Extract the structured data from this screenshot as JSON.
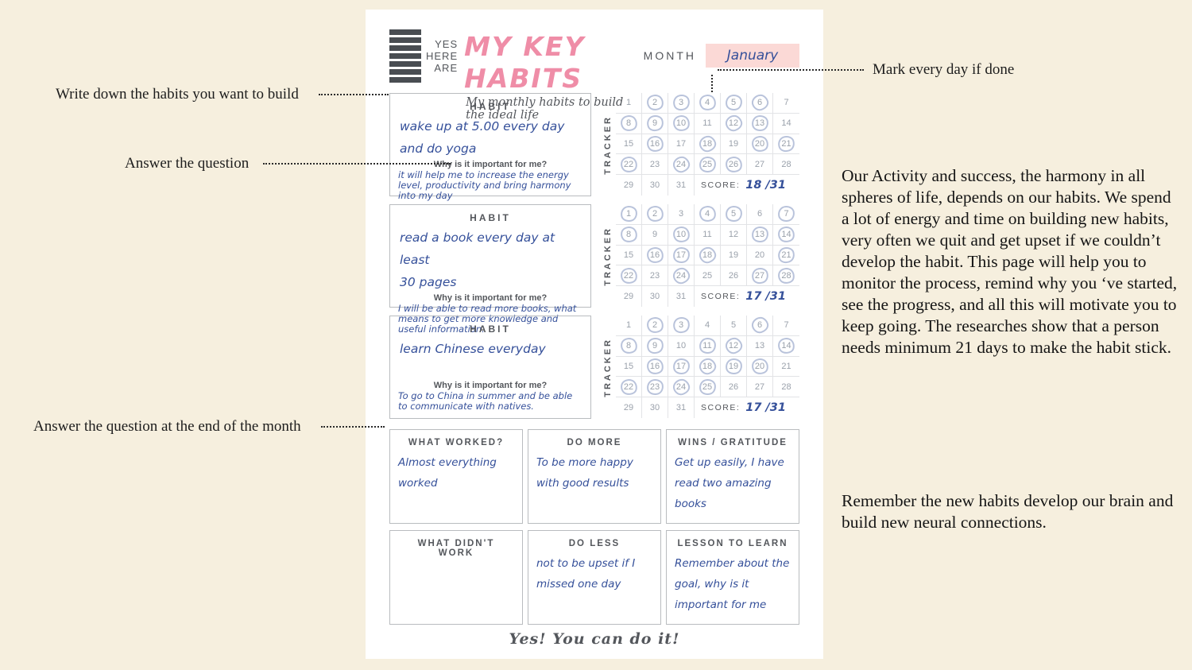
{
  "annotations": {
    "write_habits": "Write down the habits you want to build",
    "answer_question": "Answer the question",
    "answer_end_month": "Answer the question at the end of the month",
    "mark_every_day": "Mark every day if done"
  },
  "header": {
    "logo_lines": [
      "YES",
      "HERE",
      "ARE"
    ],
    "title": "MY KEY HABITS",
    "subtitle": "My monthly habits to build the ideal life",
    "month_label": "MONTH",
    "month_value": "January"
  },
  "habits": [
    {
      "habit_label": "HABIT",
      "habit_text": "wake up at 5.00 every day\nand do yoga",
      "why_label": "Why is it important for me?",
      "why_text": "it will help me to increase the energy level, productivity and bring harmony into my day",
      "tracker_label": "TRACKER",
      "days_in_month": 31,
      "marked_days": [
        2,
        3,
        4,
        5,
        6,
        8,
        9,
        10,
        12,
        13,
        16,
        18,
        20,
        21,
        22,
        24,
        25,
        26
      ],
      "score_label": "SCORE:",
      "score_value": "18 /31"
    },
    {
      "habit_label": "HABIT",
      "habit_text": "read a book every day at least\n30 pages",
      "why_label": "Why is it important for me?",
      "why_text": "I will be able to read more books, what means to get more knowledge and useful information.",
      "tracker_label": "TRACKER",
      "days_in_month": 31,
      "marked_days": [
        1,
        2,
        4,
        5,
        7,
        8,
        10,
        13,
        14,
        16,
        17,
        18,
        21,
        22,
        24,
        27,
        28
      ],
      "score_label": "SCORE:",
      "score_value": "17 /31"
    },
    {
      "habit_label": "HABIT",
      "habit_text": "learn Chinese everyday",
      "why_label": "Why is it important for me?",
      "why_text": "To go to China in summer and be able to communicate with natives.",
      "tracker_label": "TRACKER",
      "days_in_month": 31,
      "marked_days": [
        2,
        3,
        6,
        8,
        9,
        11,
        12,
        14,
        16,
        17,
        18,
        19,
        20,
        22,
        23,
        24,
        25
      ],
      "score_label": "SCORE:",
      "score_value": "17 /31"
    }
  ],
  "review_boxes": [
    {
      "title": "WHAT WORKED?",
      "text": "Almost everything worked"
    },
    {
      "title": "DO MORE",
      "text": "To be more happy with good results"
    },
    {
      "title": "WINS / GRATITUDE",
      "text": "Get up easily, I have read two amazing books"
    },
    {
      "title": "WHAT DIDN'T WORK",
      "text": ""
    },
    {
      "title": "DO LESS",
      "text": "not to be upset if I missed one day"
    },
    {
      "title": "LESSON TO LEARN",
      "text": "Remember about the goal, why is it important for me"
    }
  ],
  "footer": {
    "motto": "Yes! You can do it!"
  },
  "side_text": {
    "paragraph1": "Our Activity and success, the harmony in all spheres of life, depends on our habits. We spend a lot of energy and time on building new habits, very often we quit and get upset if we couldn’t develop the habit. This page will help you to monitor the process, remind why you ‘ve started, see the progress, and all this will motivate you to keep going. The researches show that a person needs minimum 21 days to make the habit stick.",
    "paragraph2": "Remember the new habits develop our brain and build new neural connections."
  },
  "colors": {
    "background": "#f6efde",
    "page": "#ffffff",
    "accent_pink": "#ef8da7",
    "month_box_pink": "#fbd9d6",
    "handwriting_navy": "#35509a",
    "tracker_ring_blue": "#8092be"
  }
}
